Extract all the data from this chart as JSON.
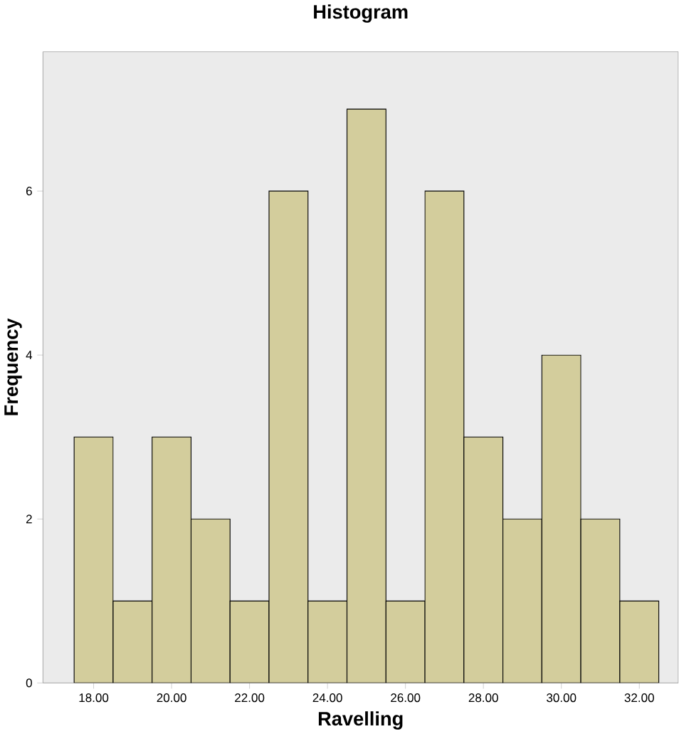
{
  "chart_data": {
    "type": "histogram",
    "title": "Histogram",
    "xlabel": "Ravelling",
    "ylabel": "Frequency",
    "bins": [
      17.5,
      18.5,
      19.5,
      20.5,
      21.5,
      22.5,
      23.5,
      24.5,
      25.5,
      26.5,
      27.5,
      28.5,
      29.5,
      30.5,
      31.5,
      32.5
    ],
    "values": [
      3,
      1,
      3,
      2,
      1,
      6,
      1,
      7,
      1,
      6,
      3,
      2,
      4,
      2,
      1
    ],
    "color": "#d3cd9c",
    "xlim": [
      16.7,
      33.0
    ],
    "ylim": [
      0,
      7.7
    ],
    "xticks": [
      {
        "value": 18,
        "label": "18.00"
      },
      {
        "value": 20,
        "label": "20.00"
      },
      {
        "value": 22,
        "label": "22.00"
      },
      {
        "value": 24,
        "label": "24.00"
      },
      {
        "value": 26,
        "label": "26.00"
      },
      {
        "value": 28,
        "label": "28.00"
      },
      {
        "value": 30,
        "label": "30.00"
      },
      {
        "value": 32,
        "label": "32.00"
      }
    ],
    "yticks": [
      0,
      2,
      4,
      6
    ],
    "grid": false
  }
}
